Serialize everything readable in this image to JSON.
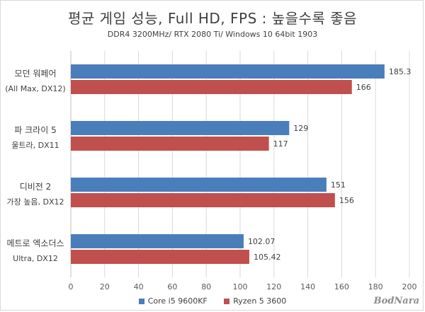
{
  "chart_data": {
    "type": "bar",
    "orientation": "horizontal",
    "title": "평균 게임 성능, Full HD, FPS : 높을수록 좋음",
    "subtitle": "DDR4 3200MHz/ RTX 2080 Ti/ Windows 10 64bit 1903",
    "categories": [
      {
        "line1": "모던 워페어",
        "line2": "(All Max, DX12)"
      },
      {
        "line1": "파 크라이 5",
        "line2": "울트라, DX11"
      },
      {
        "line1": "디비전 2",
        "line2": "가장 높음, DX12"
      },
      {
        "line1": "메트로 엑소더스",
        "line2": "Ultra, DX12"
      }
    ],
    "series": [
      {
        "name": "Core i5 9600KF",
        "color": "#4a7ebb",
        "values": [
          185.3,
          129,
          151,
          102.07
        ],
        "labels": [
          "185.3",
          "129",
          "151",
          "102.07"
        ]
      },
      {
        "name": "Ryzen 5 3600",
        "color": "#c0504d",
        "values": [
          166,
          117,
          156,
          105.42
        ],
        "labels": [
          "166",
          "117",
          "156",
          "105.42"
        ]
      }
    ],
    "xlim": [
      0,
      200
    ],
    "xticks": [
      "0",
      "20",
      "40",
      "60",
      "80",
      "100",
      "120",
      "140",
      "160",
      "180",
      "200"
    ],
    "grid": true,
    "legend_position": "bottom"
  },
  "watermark": "BodNara"
}
